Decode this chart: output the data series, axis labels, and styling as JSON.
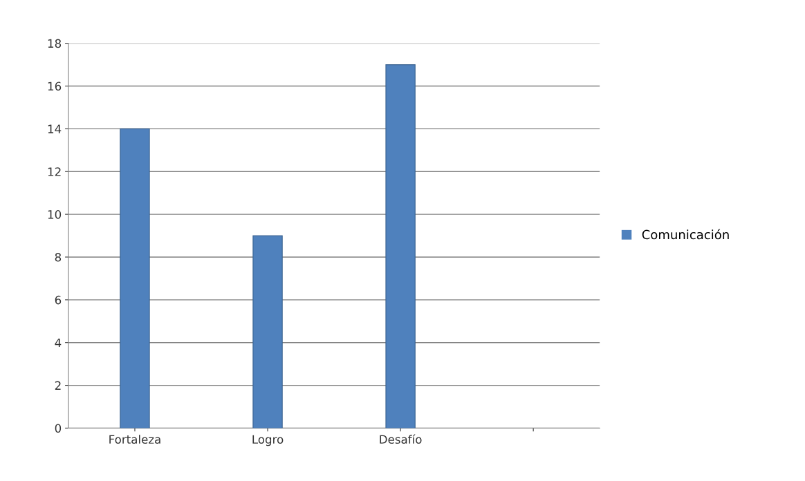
{
  "chart_data": {
    "type": "bar",
    "categories": [
      "Fortaleza",
      "Logro",
      "Desafío",
      null
    ],
    "series": [
      {
        "name": "Comunicación",
        "color": "#4f81bd",
        "values": [
          14,
          9,
          17,
          null
        ]
      }
    ],
    "ylim": [
      0,
      18
    ],
    "yticks": [
      0,
      2,
      4,
      6,
      8,
      10,
      12,
      14,
      16,
      18
    ],
    "grid": "y",
    "legend": "right"
  }
}
